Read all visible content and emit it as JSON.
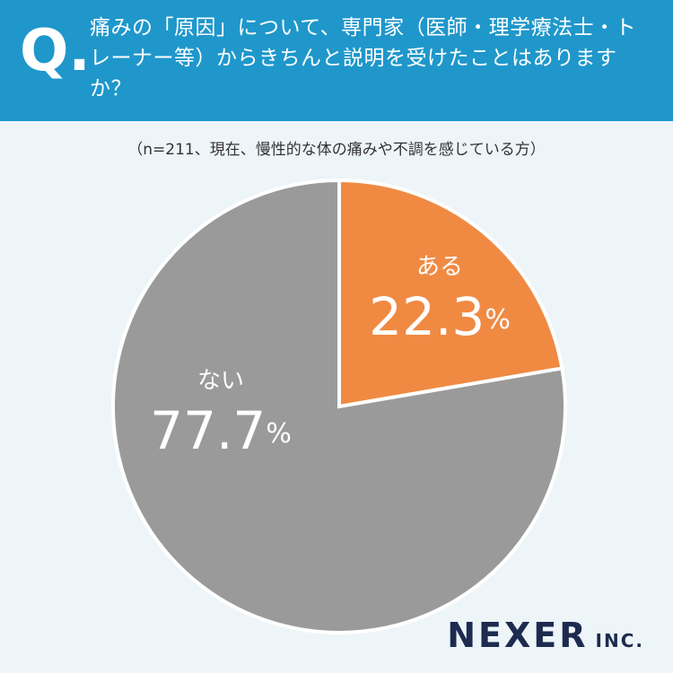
{
  "chart_data": {
    "type": "pie",
    "question_mark": "Q.",
    "title": "痛みの「原因」について、専門家（医師・理学療法士・トレーナー等）からきちんと説明を受けたことはありますか？",
    "subtitle": "（n=211、現在、慢性的な体の痛みや不調を感じている方）",
    "categories": [
      "ある",
      "ない"
    ],
    "values": [
      22.3,
      77.7
    ],
    "value_labels": [
      "22.3%",
      "77.7%"
    ],
    "colors": [
      "#f08a43",
      "#9a9a9a"
    ],
    "brand": "NEXER",
    "brand_suffix": "INC."
  }
}
